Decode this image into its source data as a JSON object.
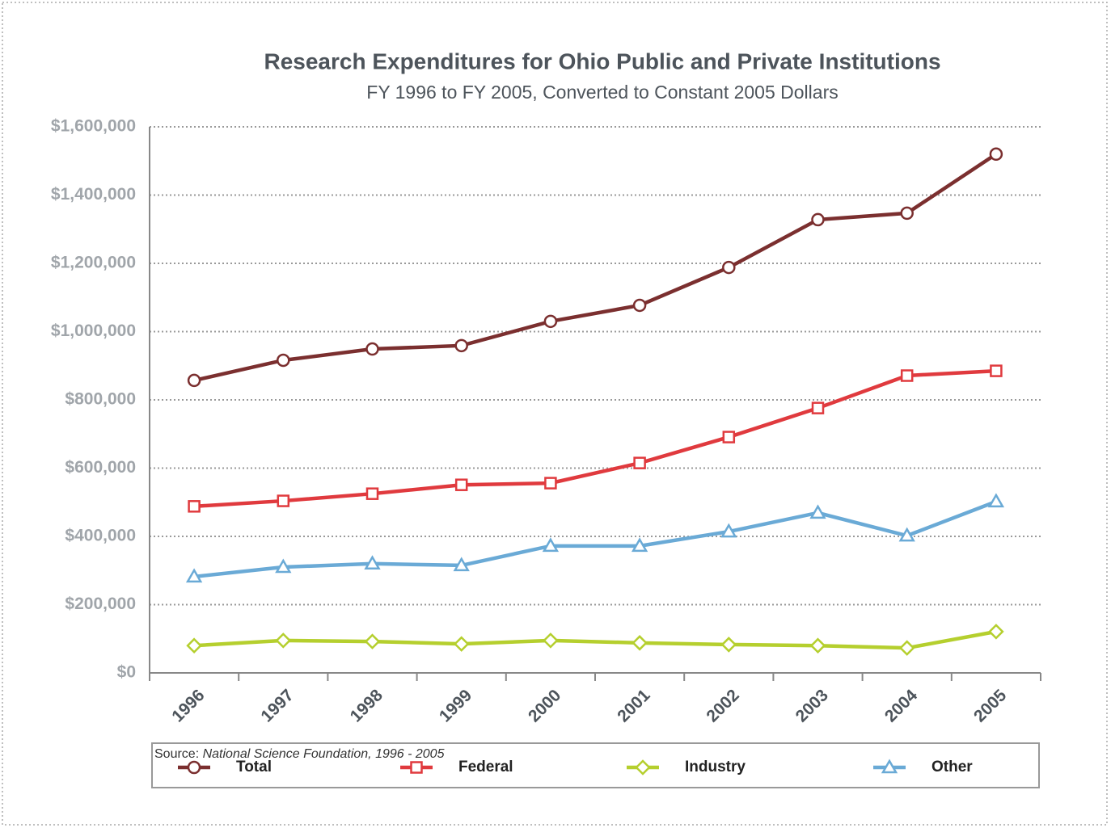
{
  "chart_data": {
    "type": "line",
    "title": "Research Expenditures for Ohio Public and Private Institutions",
    "subtitle": "FY 1996 to FY 2005, Converted to Constant 2005 Dollars",
    "source_prefix": "Source:",
    "source": "National Science Foundation, 1996 - 2005",
    "categories": [
      "1996",
      "1997",
      "1998",
      "1999",
      "2000",
      "2001",
      "2002",
      "2003",
      "2004",
      "2005"
    ],
    "series": [
      {
        "name": "Total",
        "color": "#7b2f2f",
        "marker": "circle",
        "values": [
          857000,
          916000,
          949000,
          959000,
          1030000,
          1077000,
          1188000,
          1328000,
          1347000,
          1520000
        ]
      },
      {
        "name": "Federal",
        "color": "#e03a3e",
        "marker": "square",
        "values": [
          488000,
          504000,
          525000,
          551000,
          556000,
          615000,
          691000,
          776000,
          871000,
          885000
        ]
      },
      {
        "name": "Industry",
        "color": "#b5cf2e",
        "marker": "diamond",
        "values": [
          80000,
          95000,
          92000,
          85000,
          95000,
          88000,
          83000,
          80000,
          73000,
          121000
        ]
      },
      {
        "name": "Other",
        "color": "#6aaad6",
        "marker": "triangle",
        "values": [
          282000,
          310000,
          320000,
          315000,
          372000,
          372000,
          414000,
          469000,
          402000,
          502000
        ]
      }
    ],
    "ylim": [
      0,
      1600000
    ],
    "yticks": [
      {
        "value": 0,
        "label": "$0"
      },
      {
        "value": 200000,
        "label": "$200,000"
      },
      {
        "value": 400000,
        "label": "$400,000"
      },
      {
        "value": 600000,
        "label": "$600,000"
      },
      {
        "value": 800000,
        "label": "$800,000"
      },
      {
        "value": 1000000,
        "label": "$1,000,000"
      },
      {
        "value": 1200000,
        "label": "$1,200,000"
      },
      {
        "value": 1400000,
        "label": "$1,400,000"
      },
      {
        "value": 1600000,
        "label": "$1,600,000"
      }
    ],
    "grid": true,
    "legend": "bottom"
  }
}
